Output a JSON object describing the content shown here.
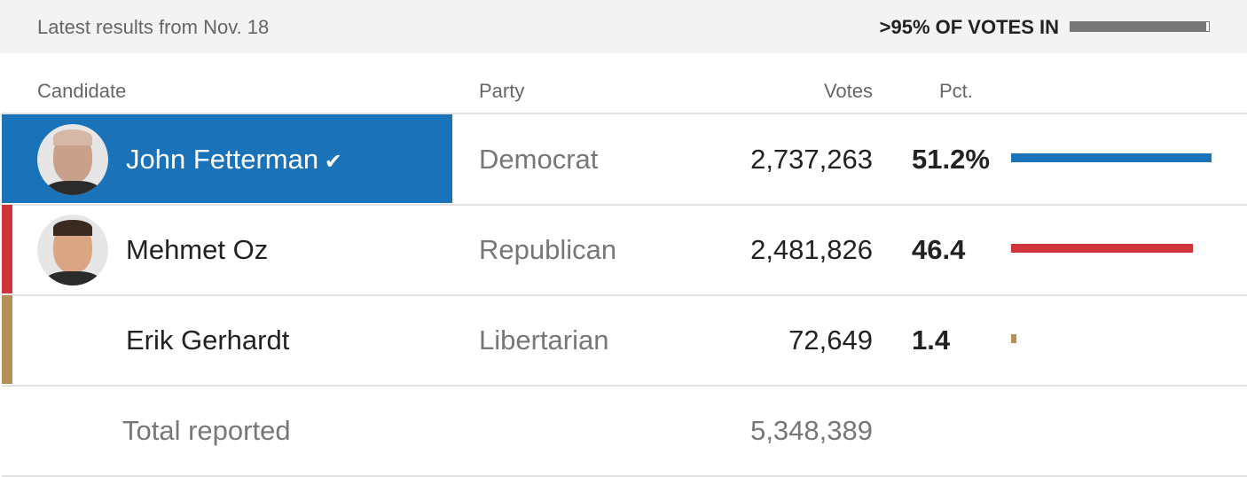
{
  "header": {
    "updated": "Latest results from Nov. 18",
    "reporting": ">95% OF VOTES IN"
  },
  "table": {
    "columns": [
      "Candidate",
      "Party",
      "Votes",
      "Pct."
    ],
    "rows": [
      {
        "name": "John Fetterman",
        "party": "Democrat",
        "votes": "2,737,263",
        "pct": 51.2,
        "pct_label": "51.2%",
        "color": "#1a72b8",
        "winner": true
      },
      {
        "name": "Mehmet Oz",
        "party": "Republican",
        "votes": "2,481,826",
        "pct": 46.4,
        "pct_label": "46.4",
        "color": "#d0343a",
        "winner": false
      },
      {
        "name": "Erik Gerhardt",
        "party": "Libertarian",
        "votes": "72,649",
        "pct": 1.4,
        "pct_label": "1.4",
        "color": "#b38f55",
        "winner": false
      }
    ],
    "total": {
      "label": "Total reported",
      "votes": "5,348,389"
    }
  }
}
